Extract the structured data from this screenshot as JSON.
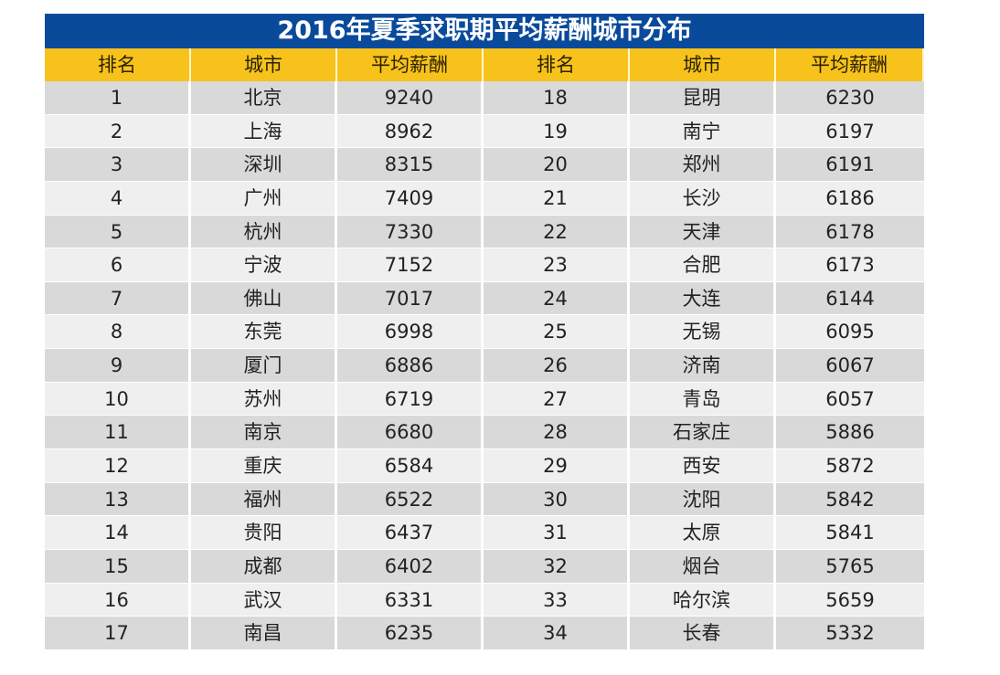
{
  "title": "2016年夏季求职期平均薪酬城市分布",
  "headers": [
    "排名",
    "城市",
    "平均薪酬",
    "排名",
    "城市",
    "平均薪酬"
  ],
  "colors": {
    "title_bg": "#0a4a9b",
    "header_bg": "#f7c21c",
    "row_dark": "#d9d9d9",
    "row_light": "#efefef"
  },
  "rows": [
    {
      "r1": "1",
      "c1": "北京",
      "s1": "9240",
      "r2": "18",
      "c2": "昆明",
      "s2": "6230"
    },
    {
      "r1": "2",
      "c1": "上海",
      "s1": "8962",
      "r2": "19",
      "c2": "南宁",
      "s2": "6197"
    },
    {
      "r1": "3",
      "c1": "深圳",
      "s1": "8315",
      "r2": "20",
      "c2": "郑州",
      "s2": "6191"
    },
    {
      "r1": "4",
      "c1": "广州",
      "s1": "7409",
      "r2": "21",
      "c2": "长沙",
      "s2": "6186"
    },
    {
      "r1": "5",
      "c1": "杭州",
      "s1": "7330",
      "r2": "22",
      "c2": "天津",
      "s2": "6178"
    },
    {
      "r1": "6",
      "c1": "宁波",
      "s1": "7152",
      "r2": "23",
      "c2": "合肥",
      "s2": "6173"
    },
    {
      "r1": "7",
      "c1": "佛山",
      "s1": "7017",
      "r2": "24",
      "c2": "大连",
      "s2": "6144"
    },
    {
      "r1": "8",
      "c1": "东莞",
      "s1": "6998",
      "r2": "25",
      "c2": "无锡",
      "s2": "6095"
    },
    {
      "r1": "9",
      "c1": "厦门",
      "s1": "6886",
      "r2": "26",
      "c2": "济南",
      "s2": "6067"
    },
    {
      "r1": "10",
      "c1": "苏州",
      "s1": "6719",
      "r2": "27",
      "c2": "青岛",
      "s2": "6057"
    },
    {
      "r1": "11",
      "c1": "南京",
      "s1": "6680",
      "r2": "28",
      "c2": "石家庄",
      "s2": "5886"
    },
    {
      "r1": "12",
      "c1": "重庆",
      "s1": "6584",
      "r2": "29",
      "c2": "西安",
      "s2": "5872"
    },
    {
      "r1": "13",
      "c1": "福州",
      "s1": "6522",
      "r2": "30",
      "c2": "沈阳",
      "s2": "5842"
    },
    {
      "r1": "14",
      "c1": "贵阳",
      "s1": "6437",
      "r2": "31",
      "c2": "太原",
      "s2": "5841"
    },
    {
      "r1": "15",
      "c1": "成都",
      "s1": "6402",
      "r2": "32",
      "c2": "烟台",
      "s2": "5765"
    },
    {
      "r1": "16",
      "c1": "武汉",
      "s1": "6331",
      "r2": "33",
      "c2": "哈尔滨",
      "s2": "5659"
    },
    {
      "r1": "17",
      "c1": "南昌",
      "s1": "6235",
      "r2": "34",
      "c2": "长春",
      "s2": "5332"
    }
  ]
}
